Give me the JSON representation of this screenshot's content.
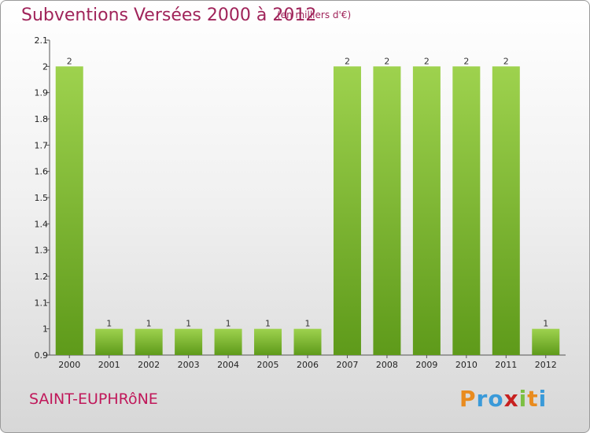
{
  "header": {
    "title": "Subventions Versées 2000 à 2012",
    "subtitle": "(en milliers d'€)"
  },
  "footer": {
    "place": "SAINT-EUPHRôNE",
    "logo_letters": [
      "P",
      "r",
      "o",
      "x",
      "i",
      "t",
      "i"
    ]
  },
  "colors": {
    "bar_top": "#9ed24e",
    "bar_bottom": "#5e9a1a",
    "title": "#a0245a"
  },
  "chart_data": {
    "type": "bar",
    "title": "Subventions Versées 2000 à 2012",
    "xlabel": "",
    "ylabel": "",
    "categories": [
      "2000",
      "2001",
      "2002",
      "2003",
      "2004",
      "2005",
      "2006",
      "2007",
      "2008",
      "2009",
      "2010",
      "2011",
      "2012"
    ],
    "values": [
      2,
      1,
      1,
      1,
      1,
      1,
      1,
      2,
      2,
      2,
      2,
      2,
      1
    ],
    "data_labels": [
      "2",
      "1",
      "1",
      "1",
      "1",
      "1",
      "1",
      "2",
      "2",
      "2",
      "2",
      "2",
      "1"
    ],
    "ylim": [
      0.9,
      2.1
    ],
    "yticks": [
      0.9,
      1,
      1.1,
      1.2,
      1.3,
      1.4,
      1.5,
      1.6,
      1.7,
      1.8,
      1.9,
      2,
      2.1
    ],
    "ytick_labels": [
      "0.9",
      "1",
      "1.1",
      "1.2",
      "1.3",
      "1.4",
      "1.5",
      "1.6",
      "1.7",
      "1.8",
      "1.9",
      "2",
      "2.1"
    ],
    "grid": false,
    "legend": "none"
  }
}
